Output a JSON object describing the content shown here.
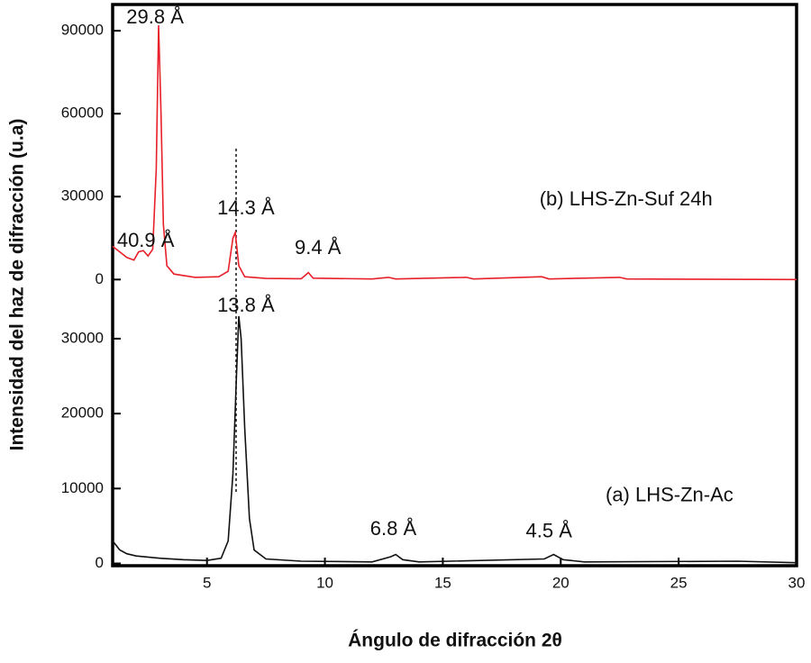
{
  "chart_data": [
    {
      "type": "line",
      "ylabel": "Intensidad del haz de difracción (u.a)",
      "xlim": [
        1,
        30
      ],
      "ylim": [
        -10000,
        99500
      ],
      "yticks": [
        0,
        30000,
        60000,
        90000
      ],
      "series": [
        {
          "name": "(b) LHS-Zn-Suf 24h",
          "color": "#e8202a",
          "x": [
            1.0,
            1.3,
            1.6,
            1.9,
            2.1,
            2.3,
            2.5,
            2.7,
            2.85,
            2.95,
            3.05,
            3.15,
            3.3,
            3.6,
            4.5,
            5.5,
            5.9,
            6.1,
            6.2,
            6.35,
            6.6,
            7.5,
            9.0,
            9.3,
            9.5,
            12.0,
            12.7,
            13.0,
            16.0,
            16.3,
            19.2,
            19.5,
            22.5,
            22.8,
            30.0
          ],
          "values": [
            12000,
            10000,
            8000,
            7000,
            10000,
            10500,
            8500,
            11000,
            40000,
            92000,
            60000,
            20000,
            5000,
            2000,
            800,
            1000,
            3000,
            15000,
            17000,
            5000,
            1000,
            400,
            300,
            2500,
            500,
            200,
            800,
            200,
            800,
            200,
            1000,
            200,
            800,
            200,
            0
          ]
        }
      ],
      "annotations": [
        {
          "text": "29.8 Å",
          "x": 2.8,
          "y": 94600
        },
        {
          "text": "40.9 Å",
          "x": 2.4,
          "y": 13700
        },
        {
          "text": "14.3 Å",
          "x": 6.65,
          "y": 25400
        },
        {
          "text": "9.4 Å",
          "x": 9.7,
          "y": 11100
        }
      ],
      "series_label": {
        "x": 19.1,
        "y": 28700
      }
    },
    {
      "type": "line",
      "xlabel": "Ángulo de difracción 2θ",
      "xlim": [
        1,
        30
      ],
      "xticks": [
        5,
        10,
        15,
        20,
        25,
        30
      ],
      "ylim": [
        -300,
        34200
      ],
      "yticks": [
        0,
        10000,
        20000,
        30000
      ],
      "series": [
        {
          "name": "(a) LHS-Zn-Ac",
          "color": "#111111",
          "x": [
            1.0,
            1.3,
            1.6,
            2.0,
            3.0,
            4.0,
            5.0,
            5.6,
            5.9,
            6.1,
            6.25,
            6.35,
            6.45,
            6.6,
            6.8,
            7.0,
            7.5,
            9.0,
            12.0,
            12.8,
            13.0,
            13.3,
            14.0,
            19.3,
            19.7,
            20.1,
            21.0,
            27.5,
            30.0
          ],
          "values": [
            3000,
            1800,
            1300,
            1000,
            700,
            500,
            400,
            700,
            3000,
            12000,
            25000,
            33000,
            30000,
            18000,
            6000,
            1800,
            600,
            300,
            200,
            900,
            1200,
            500,
            200,
            600,
            1200,
            500,
            200,
            300,
            100
          ]
        }
      ],
      "annotations": [
        {
          "text": "13.8 Å",
          "x": 6.65,
          "y": 34300
        },
        {
          "text": "6.8 Å",
          "x": 12.9,
          "y": 4460
        },
        {
          "text": "4.5 Å",
          "x": 19.5,
          "y": 4200
        }
      ],
      "series_label": {
        "x": 21.9,
        "y": 9000
      }
    }
  ]
}
